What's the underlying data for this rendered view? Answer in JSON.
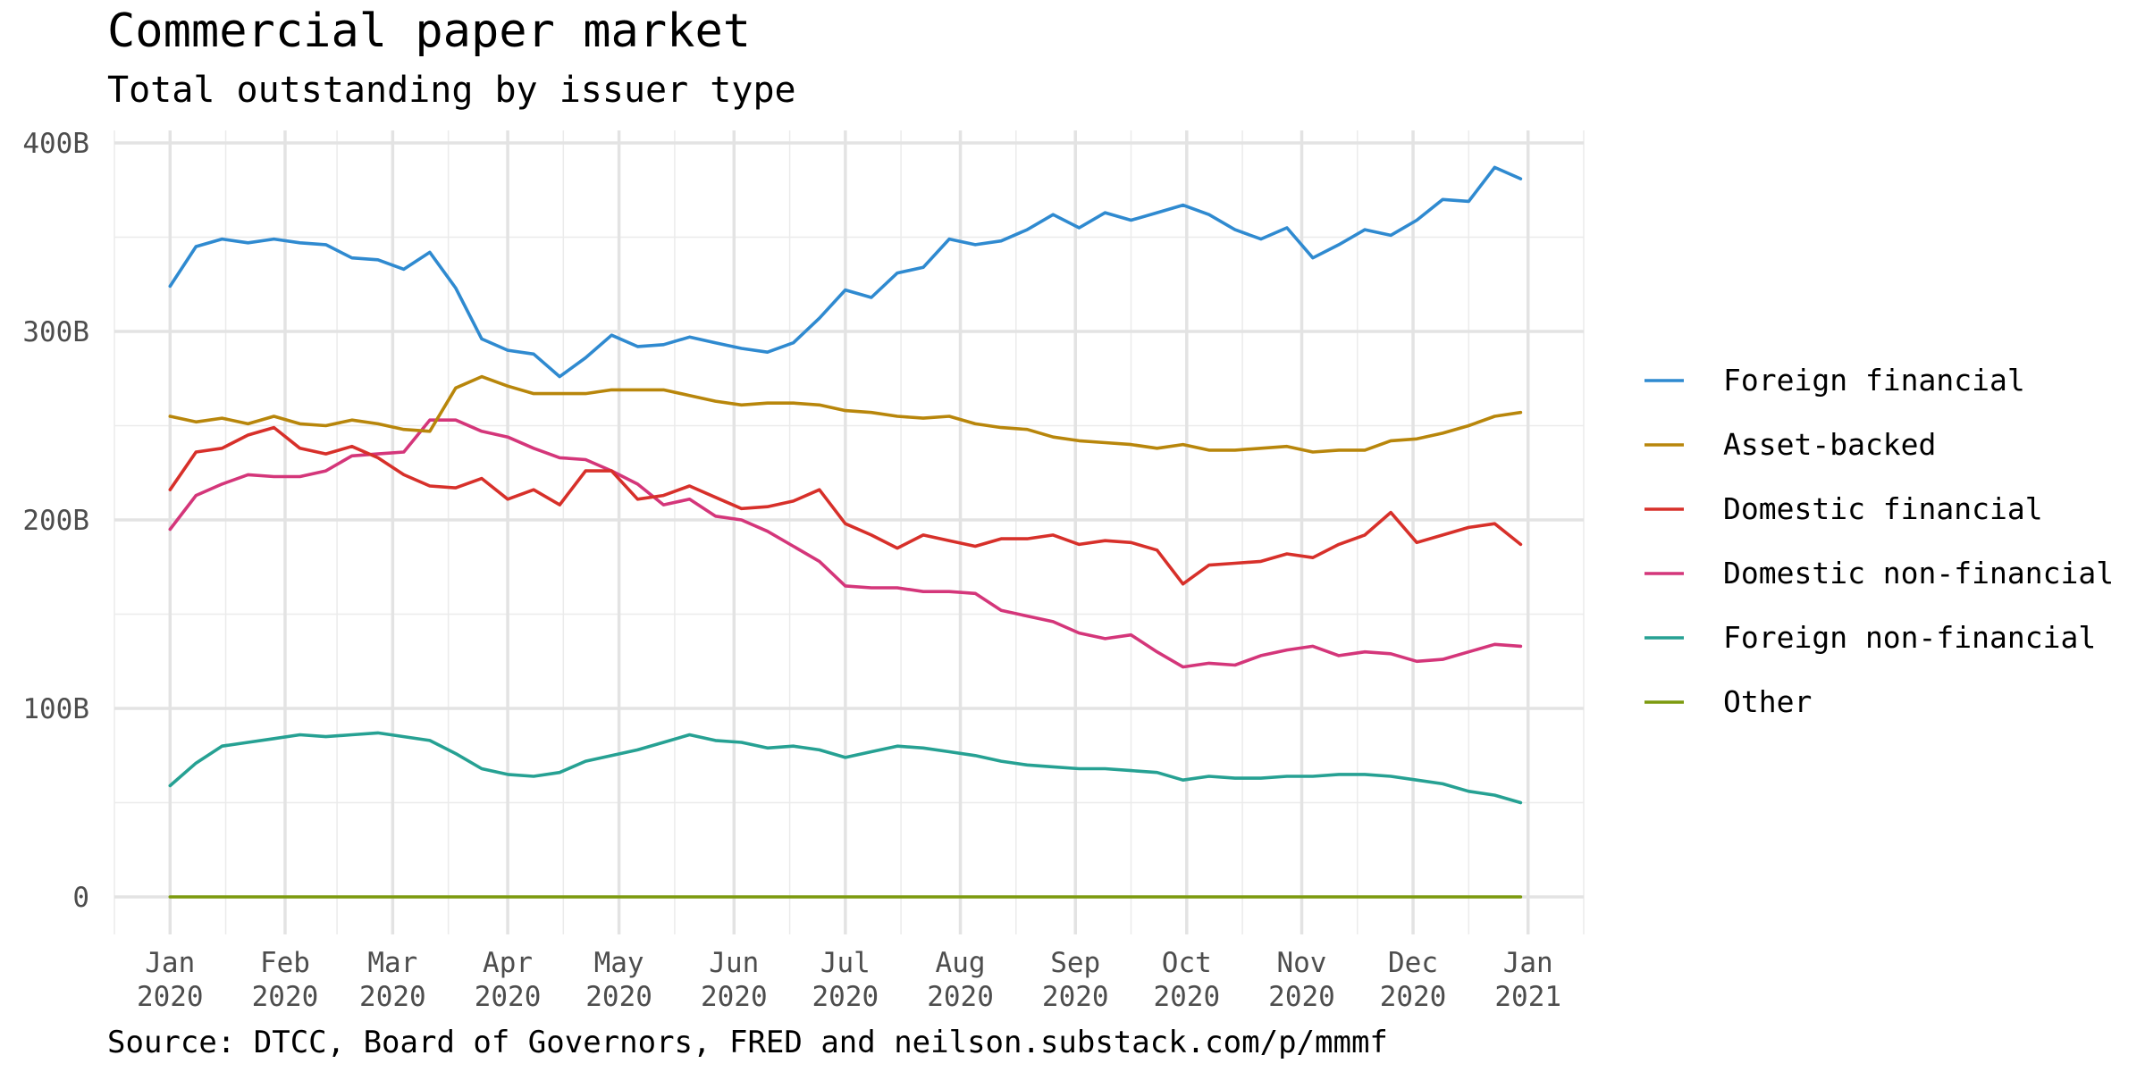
{
  "chart_data": {
    "type": "line",
    "title": "Commercial paper market",
    "subtitle": "Total outstanding by issuer type",
    "caption": "Source: DTCC, Board of Governors, FRED and neilson.substack.com/p/mmmf",
    "xlabel": "",
    "ylabel": "",
    "ylim": [
      0,
      400
    ],
    "y_ticks": [
      {
        "value": 0,
        "label": "0"
      },
      {
        "value": 100,
        "label": "100B"
      },
      {
        "value": 200,
        "label": "200B"
      },
      {
        "value": 300,
        "label": "300B"
      },
      {
        "value": 400,
        "label": "400B"
      }
    ],
    "x_ticks": [
      {
        "date": "2020-01-01",
        "line1": "Jan",
        "line2": "2020"
      },
      {
        "date": "2020-02-01",
        "line1": "Feb",
        "line2": "2020"
      },
      {
        "date": "2020-03-01",
        "line1": "Mar",
        "line2": "2020"
      },
      {
        "date": "2020-04-01",
        "line1": "Apr",
        "line2": "2020"
      },
      {
        "date": "2020-05-01",
        "line1": "May",
        "line2": "2020"
      },
      {
        "date": "2020-06-01",
        "line1": "Jun",
        "line2": "2020"
      },
      {
        "date": "2020-07-01",
        "line1": "Jul",
        "line2": "2020"
      },
      {
        "date": "2020-08-01",
        "line1": "Aug",
        "line2": "2020"
      },
      {
        "date": "2020-09-01",
        "line1": "Sep",
        "line2": "2020"
      },
      {
        "date": "2020-10-01",
        "line1": "Oct",
        "line2": "2020"
      },
      {
        "date": "2020-11-01",
        "line1": "Nov",
        "line2": "2020"
      },
      {
        "date": "2020-12-01",
        "line1": "Dec",
        "line2": "2020"
      },
      {
        "date": "2021-01-01",
        "line1": "Jan",
        "line2": "2021"
      }
    ],
    "xlim": [
      "2019-12-17",
      "2021-01-16"
    ],
    "grid": true,
    "legend_position": "right",
    "x": [
      "2020-01-01",
      "2020-01-08",
      "2020-01-15",
      "2020-01-22",
      "2020-01-29",
      "2020-02-05",
      "2020-02-12",
      "2020-02-19",
      "2020-02-26",
      "2020-03-04",
      "2020-03-11",
      "2020-03-18",
      "2020-03-25",
      "2020-04-01",
      "2020-04-08",
      "2020-04-15",
      "2020-04-22",
      "2020-04-29",
      "2020-05-06",
      "2020-05-13",
      "2020-05-20",
      "2020-05-27",
      "2020-06-03",
      "2020-06-10",
      "2020-06-17",
      "2020-06-24",
      "2020-07-01",
      "2020-07-08",
      "2020-07-15",
      "2020-07-22",
      "2020-07-29",
      "2020-08-05",
      "2020-08-12",
      "2020-08-19",
      "2020-08-26",
      "2020-09-02",
      "2020-09-09",
      "2020-09-16",
      "2020-09-23",
      "2020-09-30",
      "2020-10-07",
      "2020-10-14",
      "2020-10-21",
      "2020-10-28",
      "2020-11-04",
      "2020-11-11",
      "2020-11-18",
      "2020-11-25",
      "2020-12-02",
      "2020-12-09",
      "2020-12-16",
      "2020-12-23",
      "2020-12-30"
    ],
    "series": [
      {
        "name": "Foreign financial",
        "color": "#2F8AD0",
        "values": [
          324,
          345,
          349,
          347,
          349,
          347,
          346,
          339,
          338,
          333,
          342,
          323,
          296,
          290,
          288,
          276,
          286,
          298,
          292,
          293,
          297,
          294,
          291,
          289,
          294,
          307,
          322,
          318,
          331,
          334,
          349,
          346,
          348,
          354,
          362,
          355,
          363,
          359,
          363,
          367,
          362,
          354,
          349,
          355,
          339,
          346,
          354,
          351,
          359,
          370,
          369,
          387,
          381
        ]
      },
      {
        "name": "Asset-backed",
        "color": "#B8860B",
        "values": [
          255,
          252,
          254,
          251,
          255,
          251,
          250,
          253,
          251,
          248,
          247,
          270,
          276,
          271,
          267,
          267,
          267,
          269,
          269,
          269,
          266,
          263,
          261,
          262,
          262,
          261,
          258,
          257,
          255,
          254,
          255,
          251,
          249,
          248,
          244,
          242,
          241,
          240,
          238,
          240,
          237,
          237,
          238,
          239,
          236,
          237,
          237,
          242,
          243,
          246,
          250,
          255,
          257
        ]
      },
      {
        "name": "Domestic financial",
        "color": "#D7302A",
        "values": [
          216,
          236,
          238,
          245,
          249,
          238,
          235,
          239,
          233,
          224,
          218,
          217,
          222,
          211,
          216,
          208,
          226,
          226,
          211,
          213,
          218,
          212,
          206,
          207,
          210,
          216,
          198,
          192,
          185,
          192,
          189,
          186,
          190,
          190,
          192,
          187,
          189,
          188,
          184,
          166,
          176,
          177,
          178,
          182,
          180,
          187,
          192,
          204,
          188,
          192,
          196,
          198,
          187
        ]
      },
      {
        "name": "Domestic non-financial",
        "color": "#D4367A",
        "values": [
          195,
          213,
          219,
          224,
          223,
          223,
          226,
          234,
          235,
          236,
          253,
          253,
          247,
          244,
          238,
          233,
          232,
          226,
          219,
          208,
          211,
          202,
          200,
          194,
          186,
          178,
          165,
          164,
          164,
          162,
          162,
          161,
          152,
          149,
          146,
          140,
          137,
          139,
          130,
          122,
          124,
          123,
          128,
          131,
          133,
          128,
          130,
          129,
          125,
          126,
          130,
          134,
          133
        ]
      },
      {
        "name": "Foreign non-financial",
        "color": "#26A193",
        "values": [
          59,
          71,
          80,
          82,
          84,
          86,
          85,
          86,
          87,
          85,
          83,
          76,
          68,
          65,
          64,
          66,
          72,
          75,
          78,
          82,
          86,
          83,
          82,
          79,
          80,
          78,
          74,
          77,
          80,
          79,
          77,
          75,
          72,
          70,
          69,
          68,
          68,
          67,
          66,
          62,
          64,
          63,
          63,
          64,
          64,
          65,
          65,
          64,
          62,
          60,
          56,
          54,
          50
        ]
      },
      {
        "name": "Other",
        "color": "#7C9A0E",
        "values": [
          0,
          0,
          0,
          0,
          0,
          0,
          0,
          0,
          0,
          0,
          0,
          0,
          0,
          0,
          0,
          0,
          0,
          0,
          0,
          0,
          0,
          0,
          0,
          0,
          0,
          0,
          0,
          0,
          0,
          0,
          0,
          0,
          0,
          0,
          0,
          0,
          0,
          0,
          0,
          0,
          0,
          0,
          0,
          0,
          0,
          0,
          0,
          0,
          0,
          0,
          0,
          0,
          0
        ]
      }
    ]
  }
}
